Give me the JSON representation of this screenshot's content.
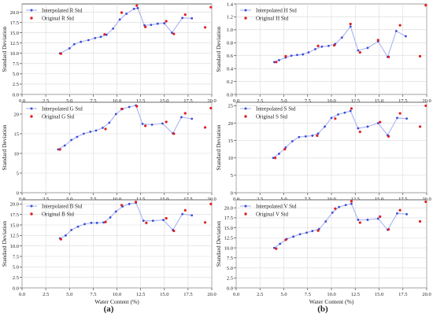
{
  "panel_labels": [
    "(a)",
    "(b)"
  ],
  "chart_data": [
    {
      "type": "line",
      "panel": "a",
      "ylabel": "Standard Deviation",
      "xlabel": "",
      "xlim": [
        0,
        20
      ],
      "ylim": [
        0,
        22
      ],
      "xticks": [
        0.0,
        2.5,
        5.0,
        7.5,
        10.0,
        12.5,
        15.0,
        17.5,
        20.0
      ],
      "yticks": [
        0.0,
        2.5,
        5.0,
        7.5,
        10.0,
        12.5,
        15.0,
        17.5,
        20.0
      ],
      "grid": true,
      "legend": "top-left",
      "series": [
        {
          "name": "Interpolated R Std",
          "style": "line-marker",
          "color": "#3b4bd8",
          "x": [
            4.0,
            5.0,
            5.5,
            6.2,
            7.0,
            7.7,
            8.3,
            8.9,
            9.6,
            10.3,
            11.0,
            11.8,
            12.2,
            12.9,
            13.6,
            14.3,
            15.0,
            15.8,
            16.9,
            17.9
          ],
          "y": [
            10.0,
            11.2,
            12.2,
            12.8,
            13.2,
            13.7,
            14.0,
            14.5,
            16.0,
            18.2,
            19.6,
            20.8,
            21.0,
            16.8,
            16.9,
            17.2,
            17.3,
            15.0,
            18.6,
            18.5
          ]
        },
        {
          "name": "Original R Std",
          "style": "marker",
          "color": "#e02020",
          "x": [
            4.1,
            8.7,
            10.5,
            12.1,
            13.0,
            15.2,
            16.0,
            17.2,
            19.3,
            19.9
          ],
          "y": [
            9.9,
            14.6,
            19.9,
            21.6,
            16.4,
            17.8,
            14.7,
            19.4,
            16.3,
            21.2
          ]
        }
      ]
    },
    {
      "type": "line",
      "panel": "b",
      "ylabel": "Standard Deviation",
      "xlabel": "",
      "xlim": [
        0,
        20
      ],
      "ylim": [
        0,
        1.4
      ],
      "xticks": [
        0.0,
        2.5,
        5.0,
        7.5,
        10.0,
        12.5,
        15.0,
        17.5,
        20.0
      ],
      "yticks": [
        0.0,
        0.2,
        0.4,
        0.6,
        0.8,
        1.0,
        1.2,
        1.4
      ],
      "grid": true,
      "legend": "top-left",
      "series": [
        {
          "name": "Interpolated H Std",
          "style": "line-marker",
          "color": "#3b4bd8",
          "x": [
            4.0,
            4.5,
            5.2,
            5.8,
            6.4,
            7.0,
            7.6,
            8.3,
            9.0,
            9.7,
            10.4,
            11.1,
            12.0,
            12.8,
            13.8,
            14.9,
            15.9,
            16.8,
            17.8
          ],
          "y": [
            0.5,
            0.53,
            0.57,
            0.6,
            0.61,
            0.62,
            0.65,
            0.7,
            0.74,
            0.75,
            0.78,
            0.88,
            1.05,
            0.68,
            0.72,
            0.82,
            0.58,
            0.98,
            0.9
          ]
        },
        {
          "name": "Original H Std",
          "style": "marker",
          "color": "#e02020",
          "x": [
            4.2,
            5.2,
            8.6,
            10.3,
            12.0,
            13.0,
            14.9,
            16.0,
            17.2,
            19.3,
            19.9
          ],
          "y": [
            0.5,
            0.59,
            0.75,
            0.76,
            1.09,
            0.65,
            0.84,
            0.58,
            1.07,
            0.59,
            1.38
          ]
        }
      ]
    },
    {
      "type": "line",
      "panel": "a",
      "ylabel": "Standard Deviation",
      "xlabel": "",
      "xlim": [
        0,
        20
      ],
      "ylim": [
        0,
        23
      ],
      "xticks": [
        0.0,
        2.5,
        5.0,
        7.5,
        10.0,
        12.5,
        15.0,
        17.5,
        20.0
      ],
      "yticks": [
        0,
        5,
        10,
        15,
        20
      ],
      "grid": true,
      "legend": "top-left",
      "series": [
        {
          "name": "Interpolated G Std",
          "style": "line-marker",
          "color": "#3b4bd8",
          "x": [
            3.8,
            4.5,
            5.2,
            5.8,
            6.5,
            7.2,
            7.8,
            8.5,
            9.2,
            9.9,
            10.6,
            11.3,
            12.0,
            12.7,
            13.7,
            14.8,
            15.9,
            16.8,
            17.9
          ],
          "y": [
            11.0,
            12.0,
            13.4,
            14.2,
            15.0,
            15.5,
            15.8,
            16.5,
            17.8,
            20.0,
            21.3,
            21.8,
            22.2,
            17.5,
            17.3,
            17.6,
            15.1,
            19.2,
            18.8
          ]
        },
        {
          "name": "Original G Std",
          "style": "marker",
          "color": "#e02020",
          "x": [
            4.0,
            8.8,
            10.5,
            12.1,
            13.0,
            15.2,
            16.0,
            17.2,
            19.3,
            19.9
          ],
          "y": [
            11.0,
            16.2,
            21.3,
            22.0,
            17.0,
            18.0,
            15.0,
            20.2,
            16.6,
            21.5
          ]
        }
      ]
    },
    {
      "type": "line",
      "panel": "b",
      "ylabel": "Standard Deviation",
      "xlabel": "",
      "xlim": [
        0,
        20
      ],
      "ylim": [
        0,
        26
      ],
      "xticks": [
        0.0,
        2.5,
        5.0,
        7.5,
        10.0,
        12.5,
        15.0,
        17.5,
        20.0
      ],
      "yticks": [
        0,
        5,
        10,
        15,
        20,
        25
      ],
      "grid": true,
      "legend": "top-left",
      "series": [
        {
          "name": "Interpolated S Std",
          "style": "line-marker",
          "color": "#3b4bd8",
          "x": [
            3.9,
            4.5,
            5.2,
            5.9,
            6.6,
            7.3,
            8.0,
            8.6,
            9.3,
            10.0,
            10.7,
            11.4,
            12.0,
            12.8,
            13.8,
            14.9,
            15.9,
            16.9,
            17.9
          ],
          "y": [
            10.0,
            11.2,
            13.0,
            14.8,
            16.0,
            16.2,
            16.4,
            17.0,
            19.0,
            21.5,
            22.5,
            23.0,
            23.5,
            18.5,
            19.0,
            20.0,
            16.5,
            21.5,
            21.3
          ]
        },
        {
          "name": "Original S Std",
          "style": "marker",
          "color": "#e02020",
          "x": [
            4.1,
            5.1,
            8.5,
            10.4,
            12.1,
            13.0,
            15.1,
            16.0,
            17.2,
            19.3,
            19.9
          ],
          "y": [
            10.0,
            12.5,
            16.4,
            21.3,
            24.2,
            17.5,
            20.3,
            16.2,
            22.8,
            19.0,
            25.0
          ]
        }
      ]
    },
    {
      "type": "line",
      "panel": "a",
      "ylabel": "Standard Deviation",
      "xlabel": "Water Content (%)",
      "xlim": [
        0,
        20
      ],
      "ylim": [
        0,
        21
      ],
      "xticks": [
        0.0,
        2.5,
        5.0,
        7.5,
        10.0,
        12.5,
        15.0,
        17.5,
        20.0
      ],
      "yticks": [
        0.0,
        2.5,
        5.0,
        7.5,
        10.0,
        12.5,
        15.0,
        17.5,
        20.0
      ],
      "grid": true,
      "legend": "top-left",
      "series": [
        {
          "name": "Interpolated B Std",
          "style": "line-marker",
          "color": "#3b4bd8",
          "x": [
            4.0,
            4.6,
            5.2,
            5.9,
            6.6,
            7.3,
            7.9,
            8.6,
            9.3,
            9.9,
            10.6,
            11.3,
            12.0,
            12.8,
            13.8,
            14.9,
            15.9,
            16.9,
            17.9
          ],
          "y": [
            11.8,
            12.5,
            13.8,
            14.6,
            15.2,
            15.5,
            15.5,
            15.6,
            16.8,
            18.2,
            19.4,
            20.0,
            20.3,
            16.0,
            16.0,
            16.2,
            13.8,
            17.6,
            17.3
          ]
        },
        {
          "name": "Original B Std",
          "style": "marker",
          "color": "#e02020",
          "x": [
            4.1,
            8.8,
            10.5,
            12.0,
            13.1,
            15.2,
            16.0,
            17.2,
            19.3,
            19.9
          ],
          "y": [
            11.6,
            15.7,
            19.7,
            20.5,
            15.5,
            16.6,
            13.6,
            18.5,
            15.6,
            20.0
          ]
        }
      ]
    },
    {
      "type": "line",
      "panel": "b",
      "ylabel": "Standard Deviation",
      "xlabel": "Water Content (%)",
      "xlim": [
        0,
        20
      ],
      "ylim": [
        0,
        22
      ],
      "xticks": [
        0.0,
        2.5,
        5.0,
        7.5,
        10.0,
        12.5,
        15.0,
        17.5,
        20.0
      ],
      "yticks": [
        0.0,
        2.5,
        5.0,
        7.5,
        10.0,
        12.5,
        15.0,
        17.5,
        20.0
      ],
      "grid": true,
      "legend": "top-left",
      "series": [
        {
          "name": "Interpolated V Std",
          "style": "line-marker",
          "color": "#3b4bd8",
          "x": [
            4.0,
            4.6,
            5.3,
            6.0,
            6.7,
            7.4,
            8.0,
            8.7,
            9.4,
            10.1,
            10.8,
            11.5,
            12.1,
            12.8,
            13.8,
            14.9,
            15.9,
            16.9,
            17.9
          ],
          "y": [
            10.0,
            11.0,
            12.2,
            12.8,
            13.4,
            13.8,
            14.2,
            14.7,
            16.6,
            18.8,
            20.2,
            20.7,
            21.0,
            17.0,
            17.0,
            17.3,
            14.5,
            18.6,
            18.4
          ]
        },
        {
          "name": "Original V Std",
          "style": "marker",
          "color": "#e02020",
          "x": [
            4.2,
            5.2,
            8.6,
            10.4,
            12.1,
            13.0,
            15.1,
            16.0,
            17.2,
            19.3,
            19.9
          ],
          "y": [
            9.8,
            12.0,
            14.3,
            19.8,
            21.6,
            16.3,
            17.8,
            14.6,
            19.4,
            16.6,
            21.5
          ]
        }
      ]
    }
  ]
}
